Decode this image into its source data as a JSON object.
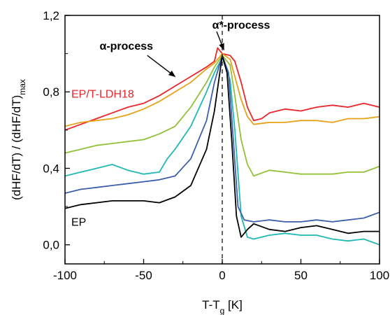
{
  "chart_data": {
    "type": "line",
    "xlabel": "T-T",
    "xlabel_sub": "g",
    "xlabel_unit": " [K]",
    "ylabel": "(dHF/dT) / (dHF/dT)",
    "ylabel_sub": "max",
    "xlim": [
      -100,
      100
    ],
    "ylim": [
      -0.1,
      1.2
    ],
    "x_ticks": [
      -100,
      -50,
      0,
      50,
      100
    ],
    "x_tick_labels": [
      "-100",
      "-50",
      "0",
      "50",
      "100"
    ],
    "y_ticks": [
      0.0,
      0.4,
      0.8,
      1.2
    ],
    "y_tick_labels": [
      "0,0",
      "0,4",
      "0,8",
      "1,2"
    ],
    "grid": false,
    "reference_line": {
      "x": 0,
      "style": "dashed"
    },
    "annotations": [
      {
        "text": "α-process",
        "x": -61,
        "y": 1.02,
        "arrow_to": [
          -30,
          0.88
        ]
      },
      {
        "text": "α*-process",
        "x": 12,
        "y": 1.13,
        "arrow_to": [
          1,
          1.02
        ]
      }
    ],
    "series": [
      {
        "name": "EP/T-LDH18",
        "color": "#e8262b",
        "label_at": [
          -96,
          0.77
        ],
        "points": [
          [
            -100,
            0.6
          ],
          [
            -90,
            0.63
          ],
          [
            -80,
            0.66
          ],
          [
            -70,
            0.69
          ],
          [
            -60,
            0.72
          ],
          [
            -50,
            0.74
          ],
          [
            -40,
            0.78
          ],
          [
            -30,
            0.83
          ],
          [
            -20,
            0.88
          ],
          [
            -10,
            0.93
          ],
          [
            -5,
            0.96
          ],
          [
            -3,
            1.03
          ],
          [
            0,
            1.0
          ],
          [
            5,
            0.99
          ],
          [
            8,
            0.96
          ],
          [
            12,
            0.85
          ],
          [
            16,
            0.72
          ],
          [
            20,
            0.65
          ],
          [
            25,
            0.66
          ],
          [
            30,
            0.69
          ],
          [
            40,
            0.71
          ],
          [
            50,
            0.7
          ],
          [
            60,
            0.72
          ],
          [
            70,
            0.73
          ],
          [
            80,
            0.72
          ],
          [
            90,
            0.74
          ],
          [
            100,
            0.72
          ]
        ]
      },
      {
        "name": "",
        "color": "#e8a21a",
        "points": [
          [
            -100,
            0.62
          ],
          [
            -90,
            0.64
          ],
          [
            -80,
            0.65
          ],
          [
            -70,
            0.66
          ],
          [
            -60,
            0.68
          ],
          [
            -50,
            0.71
          ],
          [
            -40,
            0.75
          ],
          [
            -30,
            0.8
          ],
          [
            -20,
            0.85
          ],
          [
            -10,
            0.92
          ],
          [
            -5,
            0.95
          ],
          [
            0,
            1.0
          ],
          [
            5,
            0.97
          ],
          [
            8,
            0.88
          ],
          [
            12,
            0.76
          ],
          [
            16,
            0.67
          ],
          [
            20,
            0.63
          ],
          [
            30,
            0.64
          ],
          [
            40,
            0.64
          ],
          [
            50,
            0.65
          ],
          [
            60,
            0.65
          ],
          [
            70,
            0.64
          ],
          [
            80,
            0.66
          ],
          [
            90,
            0.66
          ],
          [
            100,
            0.67
          ]
        ]
      },
      {
        "name": "",
        "color": "#94c039",
        "points": [
          [
            -100,
            0.48
          ],
          [
            -90,
            0.5
          ],
          [
            -80,
            0.52
          ],
          [
            -70,
            0.53
          ],
          [
            -60,
            0.54
          ],
          [
            -50,
            0.55
          ],
          [
            -40,
            0.58
          ],
          [
            -30,
            0.62
          ],
          [
            -20,
            0.72
          ],
          [
            -10,
            0.85
          ],
          [
            -5,
            0.93
          ],
          [
            0,
            0.99
          ],
          [
            5,
            0.94
          ],
          [
            8,
            0.78
          ],
          [
            12,
            0.55
          ],
          [
            16,
            0.42
          ],
          [
            20,
            0.36
          ],
          [
            30,
            0.39
          ],
          [
            40,
            0.38
          ],
          [
            50,
            0.37
          ],
          [
            60,
            0.37
          ],
          [
            70,
            0.37
          ],
          [
            80,
            0.38
          ],
          [
            90,
            0.38
          ],
          [
            100,
            0.41
          ]
        ]
      },
      {
        "name": "",
        "color": "#1fb8b4",
        "points": [
          [
            -100,
            0.36
          ],
          [
            -90,
            0.38
          ],
          [
            -80,
            0.4
          ],
          [
            -70,
            0.42
          ],
          [
            -60,
            0.39
          ],
          [
            -50,
            0.37
          ],
          [
            -40,
            0.38
          ],
          [
            -35,
            0.45
          ],
          [
            -30,
            0.5
          ],
          [
            -20,
            0.62
          ],
          [
            -10,
            0.8
          ],
          [
            -5,
            0.9
          ],
          [
            0,
            0.98
          ],
          [
            5,
            0.86
          ],
          [
            8,
            0.6
          ],
          [
            12,
            0.15
          ],
          [
            16,
            0.04
          ],
          [
            20,
            0.03
          ],
          [
            30,
            0.05
          ],
          [
            40,
            0.06
          ],
          [
            50,
            0.05
          ],
          [
            60,
            0.05
          ],
          [
            70,
            0.03
          ],
          [
            80,
            0.02
          ],
          [
            90,
            0.03
          ],
          [
            100,
            0.0
          ]
        ]
      },
      {
        "name": "",
        "color": "#3d5eab",
        "points": [
          [
            -100,
            0.27
          ],
          [
            -90,
            0.29
          ],
          [
            -80,
            0.3
          ],
          [
            -70,
            0.31
          ],
          [
            -60,
            0.32
          ],
          [
            -50,
            0.33
          ],
          [
            -40,
            0.34
          ],
          [
            -30,
            0.36
          ],
          [
            -20,
            0.45
          ],
          [
            -10,
            0.65
          ],
          [
            -5,
            0.85
          ],
          [
            0,
            0.99
          ],
          [
            4,
            0.9
          ],
          [
            7,
            0.55
          ],
          [
            10,
            0.2
          ],
          [
            14,
            0.13
          ],
          [
            20,
            0.12
          ],
          [
            30,
            0.13
          ],
          [
            40,
            0.12
          ],
          [
            50,
            0.12
          ],
          [
            60,
            0.13
          ],
          [
            70,
            0.12
          ],
          [
            80,
            0.13
          ],
          [
            90,
            0.14
          ],
          [
            100,
            0.17
          ]
        ]
      },
      {
        "name": "EP",
        "color": "#000000",
        "label_at": [
          -96,
          0.1
        ],
        "points": [
          [
            -100,
            0.19
          ],
          [
            -90,
            0.21
          ],
          [
            -80,
            0.22
          ],
          [
            -70,
            0.23
          ],
          [
            -60,
            0.23
          ],
          [
            -50,
            0.23
          ],
          [
            -40,
            0.22
          ],
          [
            -30,
            0.25
          ],
          [
            -20,
            0.31
          ],
          [
            -10,
            0.5
          ],
          [
            -5,
            0.7
          ],
          [
            0,
            0.99
          ],
          [
            3,
            0.9
          ],
          [
            6,
            0.55
          ],
          [
            9,
            0.15
          ],
          [
            12,
            0.04
          ],
          [
            16,
            0.08
          ],
          [
            20,
            0.11
          ],
          [
            30,
            0.08
          ],
          [
            40,
            0.07
          ],
          [
            50,
            0.09
          ],
          [
            60,
            0.1
          ],
          [
            70,
            0.08
          ],
          [
            80,
            0.06
          ],
          [
            90,
            0.07
          ],
          [
            100,
            0.07
          ]
        ]
      }
    ]
  }
}
